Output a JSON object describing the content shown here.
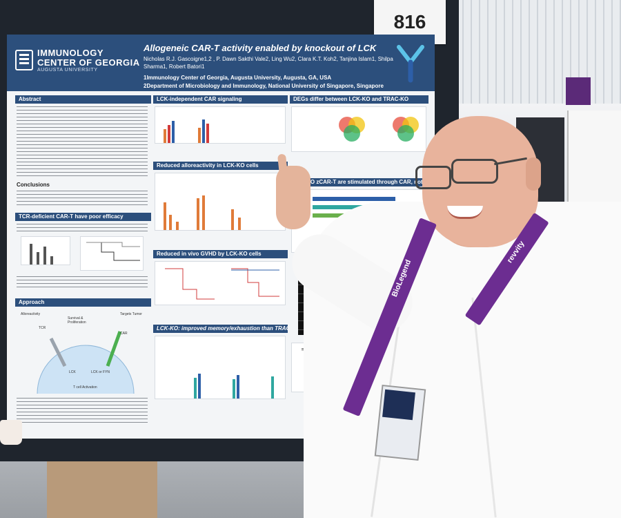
{
  "poster_number": "816",
  "poster": {
    "org_line1": "IMMUNOLOGY",
    "org_line2": "CENTER OF GEORGIA",
    "org_line3": "AUGUSTA UNIVERSITY",
    "title": "Allogeneic CAR-T activity enabled by knockout of LCK",
    "authors": "Nicholas R.J. Gascoigne1,2 , P. Dawn Sakthi Vale2, Ling Wu2, Clara K.T. Koh2, Tanjina Islam1, Shilpa Sharma1, Robert Batori1",
    "affiliation1": "1Immunology Center of Georgia, Augusta University, Augusta, GA, USA",
    "affiliation2": "2Department of Microbiology and Immunology, National University of Singapore, Singapore",
    "sections": {
      "abstract": "Abstract",
      "conclusions": "Conclusions",
      "tcr_deficient": "TCR-deficient CAR-T have poor efficacy",
      "approach": "Approach",
      "lck_independent": "LCK-independent CAR signaling",
      "reduced_alloreactivity": "Reduced alloreactivity in LCK-KO cells",
      "reduced_gvhd": "Reduced in vivo GVHD by LCK-KO cells",
      "memory_exhaustion": "LCK-KO: improved memory/exhaustion than TRAC-KO",
      "degs": "DEGs differ between LCK-KO and TRAC-KO",
      "stimulated": "LCK-KO zCAR-T are stimulated through CAR, not TCR"
    },
    "approach_labels": {
      "tcr": "TCR",
      "alloreactivity": "Alloreactivity",
      "survival": "Survival & Proliferation",
      "targets_tumor": "Targets Tumor",
      "car": "CAR",
      "lck": "LCK",
      "lck_or_fyn": "LCK or FYN",
      "activation": "T cell Activation"
    }
  },
  "lanyard": {
    "brand1": "BioLegend",
    "brand2": "revvity"
  }
}
